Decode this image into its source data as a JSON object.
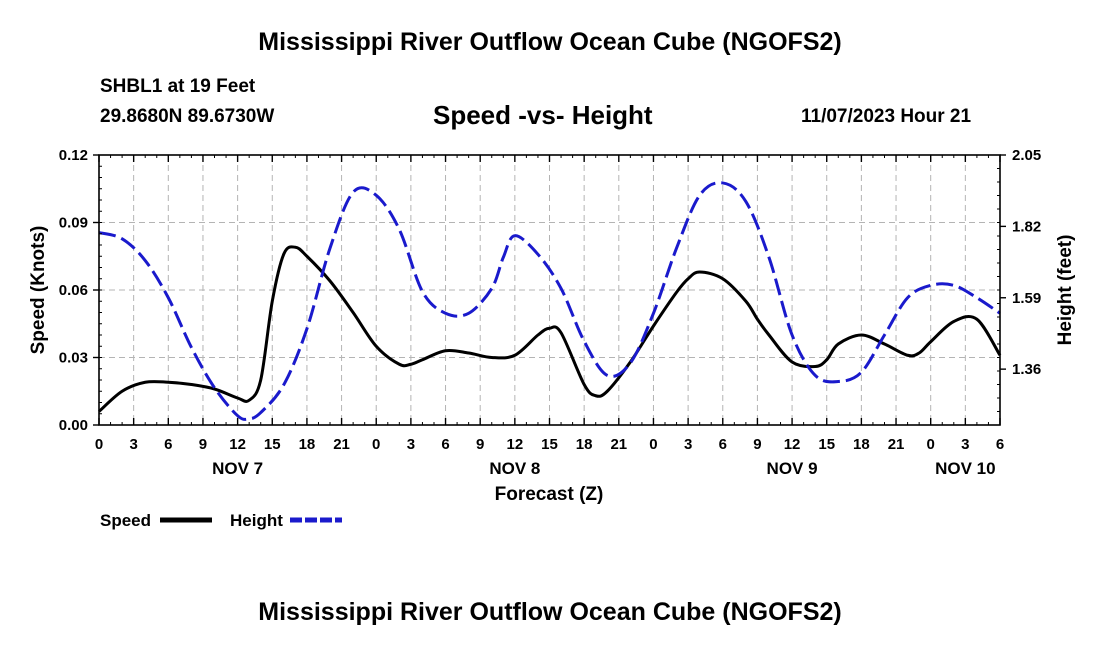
{
  "header": {
    "title": "Mississippi River Outflow Ocean Cube (NGOFS2)",
    "station": "SHBL1 at 19 Feet",
    "coords": "29.8680N  89.6730W",
    "subtitle": "Speed -vs- Height",
    "datestamp": "11/07/2023 Hour 21"
  },
  "footer": {
    "title": "Mississippi River Outflow Ocean Cube (NGOFS2)"
  },
  "chart_data": {
    "type": "line",
    "title": "Speed -vs- Height",
    "xlabel": "Forecast (Z)",
    "ylabel": "Speed (Knots)",
    "y2label": "Height (feet)",
    "x_unit": "hours since 11/07 00Z",
    "xlim": [
      0,
      78
    ],
    "ylim": [
      0,
      0.12
    ],
    "y2lim": [
      1.18,
      2.05
    ],
    "grid": true,
    "yticks": [
      "0.00",
      "0.03",
      "0.06",
      "0.09",
      "0.12"
    ],
    "y2ticks": [
      "1.36",
      "1.59",
      "1.82",
      "2.05"
    ],
    "x_tick_labels": [
      "0",
      "3",
      "6",
      "9",
      "12",
      "15",
      "18",
      "21",
      "0",
      "3",
      "6",
      "9",
      "12",
      "15",
      "18",
      "21",
      "0",
      "3",
      "6",
      "9",
      "12",
      "15",
      "18",
      "21",
      "0",
      "3",
      "6"
    ],
    "day_labels": [
      {
        "label": "NOV 7",
        "hour": 12
      },
      {
        "label": "NOV 8",
        "hour": 36
      },
      {
        "label": "NOV 9",
        "hour": 60
      },
      {
        "label": "NOV 10",
        "hour": 75
      }
    ],
    "legend": [
      {
        "label": "Speed",
        "color": "#000000",
        "style": "solid"
      },
      {
        "label": "Height",
        "color": "#1a1acc",
        "style": "dashed"
      }
    ],
    "series": [
      {
        "name": "Speed",
        "axis": "left",
        "color": "#000000",
        "style": "solid",
        "x": [
          0,
          2,
          4,
          6,
          8,
          10,
          12,
          13,
          14,
          15,
          16,
          17,
          18,
          20,
          22,
          24,
          26,
          27,
          28,
          30,
          32,
          34,
          36,
          38,
          39,
          40,
          42,
          43,
          44,
          46,
          48,
          50,
          51,
          52,
          54,
          56,
          57,
          58,
          60,
          62,
          63,
          64,
          66,
          68,
          70,
          71,
          72,
          74,
          76,
          78
        ],
        "y": [
          0.006,
          0.015,
          0.019,
          0.019,
          0.018,
          0.016,
          0.012,
          0.011,
          0.02,
          0.055,
          0.076,
          0.079,
          0.075,
          0.064,
          0.05,
          0.035,
          0.027,
          0.027,
          0.029,
          0.033,
          0.032,
          0.03,
          0.031,
          0.04,
          0.043,
          0.041,
          0.018,
          0.013,
          0.015,
          0.028,
          0.044,
          0.059,
          0.065,
          0.068,
          0.065,
          0.055,
          0.047,
          0.04,
          0.028,
          0.026,
          0.029,
          0.036,
          0.04,
          0.036,
          0.031,
          0.032,
          0.037,
          0.046,
          0.047,
          0.031
        ]
      },
      {
        "name": "Height",
        "axis": "right",
        "color": "#1a1acc",
        "style": "dashed",
        "x": [
          0,
          2,
          4,
          6,
          8,
          10,
          12,
          13,
          14,
          16,
          18,
          20,
          22,
          24,
          26,
          28,
          30,
          32,
          34,
          35,
          36,
          38,
          40,
          42,
          44,
          46,
          48,
          50,
          52,
          54,
          56,
          58,
          60,
          62,
          64,
          66,
          68,
          70,
          72,
          74,
          76,
          78
        ],
        "y": [
          1.8,
          1.78,
          1.71,
          1.59,
          1.43,
          1.3,
          1.21,
          1.2,
          1.22,
          1.31,
          1.49,
          1.75,
          1.93,
          1.92,
          1.81,
          1.61,
          1.54,
          1.54,
          1.62,
          1.72,
          1.79,
          1.73,
          1.62,
          1.45,
          1.34,
          1.38,
          1.54,
          1.75,
          1.92,
          1.96,
          1.9,
          1.72,
          1.47,
          1.34,
          1.32,
          1.35,
          1.47,
          1.59,
          1.63,
          1.63,
          1.59,
          1.54
        ]
      }
    ]
  }
}
